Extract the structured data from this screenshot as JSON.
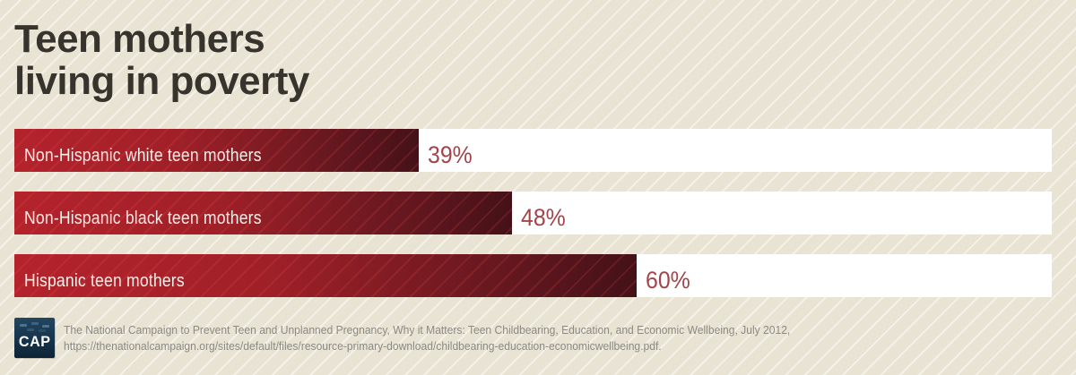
{
  "header": {
    "title_line1": "Teen mothers",
    "title_line2": "living in poverty"
  },
  "chart_data": {
    "type": "bar",
    "orientation": "horizontal",
    "title": "Teen mothers living in poverty",
    "categories": [
      "Non-Hispanic white teen mothers",
      "Non-Hispanic black teen mothers",
      "Hispanic teen mothers"
    ],
    "values": [
      39,
      48,
      60
    ],
    "value_labels": [
      "39%",
      "48%",
      "60%"
    ],
    "unit": "%",
    "xlim": [
      0,
      100
    ],
    "grid": false,
    "legend": "none",
    "track_color": "#ffffff"
  },
  "footer": {
    "logo_text": "CAP",
    "source_line1": "The National Campaign to Prevent Teen and Unplanned Pregnancy, Why it Matters: Teen Childbearing, Education, and Economic Wellbeing, July 2012,",
    "source_line2": "https://thenationalcampaign.org/sites/default/files/resource-primary-download/childbearing-education-economicwellbeing.pdf."
  },
  "colors": {
    "background": "#e8e3d3",
    "background_stripe": "#f2eee1",
    "bar_gradient_start": "#b4232c",
    "bar_gradient_end": "#441118",
    "bar_track": "#ffffff",
    "value_label": "#a2454b",
    "bar_text": "#f6efe9",
    "title_text": "#37342e",
    "citation_text": "#8b8a83",
    "logo_background": "#16344b"
  }
}
